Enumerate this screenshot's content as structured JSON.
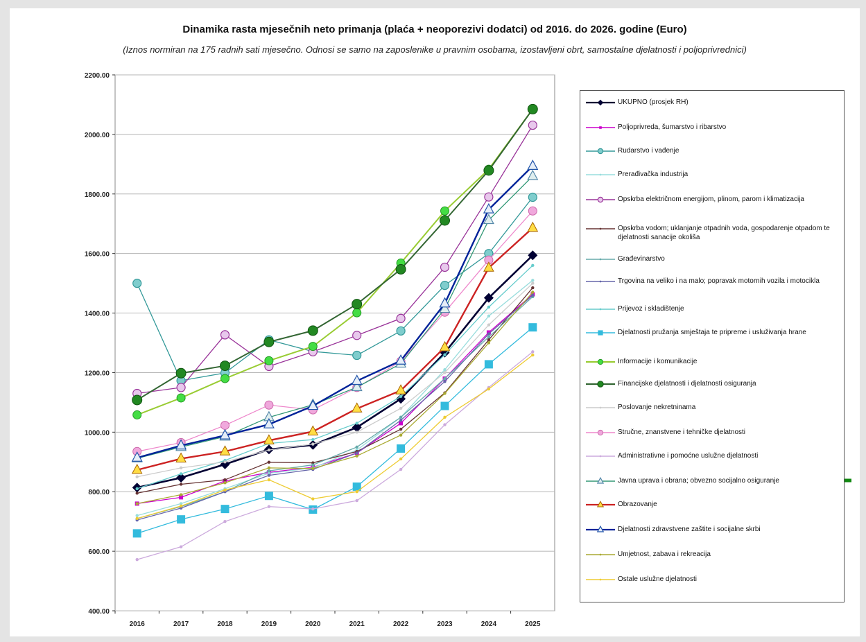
{
  "header": {
    "title": "Dinamika rasta mjesečnih neto primanja (plaća + neoporezivi dodatci) od 2016. do 2026. godine (Euro)",
    "subtitle": "(Iznos normiran na 175 radnih sati mjesečno. Odnosi se samo na zaposlenike u pravnim osobama, izostavljeni obrt, samostalne djelatnosti i poljoprivrednici)"
  },
  "chart_data": {
    "type": "line",
    "title": "Dinamika rasta mjesečnih neto primanja (plaća + neoporezivi dodatci) od 2016. do 2026. godine (Euro)",
    "subtitle": "(Iznos normiran na 175 radnih sati mjesečno. Odnosi se samo na zaposlenike u pravnim osobama, izostavljeni obrt, samostalne djelatnosti i poljoprivrednici)",
    "xlabel": "",
    "ylabel": "",
    "x": [
      "2016",
      "2017",
      "2018",
      "2019",
      "2020",
      "2021",
      "2022",
      "2023",
      "2024",
      "2025"
    ],
    "ylim": [
      400,
      2200
    ],
    "yticks": [
      "400.00",
      "600.00",
      "800.00",
      "1000.00",
      "1200.00",
      "1400.00",
      "1600.00",
      "1800.00",
      "2000.00",
      "2200.00"
    ],
    "grid": "y-major",
    "legend_position": "right",
    "series": [
      {
        "name": "UKUPNO (prosjek RH)",
        "color": "#000033",
        "marker": "diamond",
        "values": [
          814,
          847,
          892,
          942,
          957,
          1016,
          1112,
          1267,
          1451,
          1594
        ]
      },
      {
        "name": "Poljoprivreda, šumarstvo i ribarstvo",
        "color": "#cc00cc",
        "marker": "square-small",
        "values": [
          760,
          781,
          836,
          865,
          882,
          930,
          1030,
          1180,
          1335,
          1463
        ]
      },
      {
        "name": "Rudarstvo i vađenje",
        "color": "#339999",
        "marker": "circle",
        "values": [
          1500,
          1173,
          1199,
          1310,
          1271,
          1258,
          1340,
          1493,
          1600,
          1789
        ]
      },
      {
        "name": "Prerađivačka industrija",
        "color": "#99dddd",
        "marker": "dot",
        "values": [
          720,
          760,
          810,
          862,
          880,
          940,
          1050,
          1210,
          1390,
          1510
        ]
      },
      {
        "name": "Opskrba električnom energijom, plinom, parom i klimatizacija",
        "color": "#993399",
        "marker": "circle",
        "values": [
          1130,
          1150,
          1327,
          1221,
          1270,
          1325,
          1382,
          1554,
          1790,
          2031
        ]
      },
      {
        "name": "Opskrba vodom; uklanjanje otpadnih voda, gospodarenje otpadom te djelatnosti sanacije okoliša",
        "color": "#663333",
        "marker": "dot",
        "values": [
          795,
          825,
          840,
          899,
          897,
          935,
          1010,
          1132,
          1310,
          1485
        ]
      },
      {
        "name": "Građevinarstvo",
        "color": "#66aaaa",
        "marker": "dot",
        "values": [
          710,
          750,
          800,
          870,
          890,
          950,
          1050,
          1180,
          1320,
          1455
        ]
      },
      {
        "name": "Trgovina na veliko i na malo; popravak motornih vozila i motocikla",
        "color": "#6666aa",
        "marker": "dot",
        "values": [
          705,
          745,
          800,
          855,
          875,
          930,
          1040,
          1170,
          1330,
          1460
        ]
      },
      {
        "name": "Prijevoz i skladištenje",
        "color": "#66cccc",
        "marker": "dot",
        "values": [
          810,
          860,
          905,
          962,
          975,
          1030,
          1120,
          1260,
          1420,
          1560
        ]
      },
      {
        "name": "Djelatnosti pružanja smještaja te pripreme i usluživanja hrane",
        "color": "#33bbdd",
        "marker": "square",
        "values": [
          660,
          707,
          742,
          786,
          740,
          817,
          945,
          1088,
          1228,
          1352
        ]
      },
      {
        "name": "Informacije i komunikacije",
        "color": "#99cc33",
        "marker": "circle-light",
        "values": [
          1058,
          1115,
          1180,
          1240,
          1288,
          1401,
          1568,
          1743,
          1883,
          2085
        ]
      },
      {
        "name": "Financijske djelatnosti i djelatnosti osiguranja",
        "color": "#336633",
        "marker": "circle-dark",
        "values": [
          1108,
          1198,
          1223,
          1303,
          1341,
          1430,
          1547,
          1711,
          1879,
          2085
        ]
      },
      {
        "name": "Poslovanje nekretninama",
        "color": "#cccccc",
        "marker": "dot",
        "values": [
          850,
          880,
          900,
          940,
          960,
          1000,
          1080,
          1200,
          1360,
          1500
        ]
      },
      {
        "name": "Stručne, znanstvene i tehničke djelatnosti",
        "color": "#ee88cc",
        "marker": "circle-pink",
        "values": [
          935,
          965,
          1023,
          1091,
          1075,
          1150,
          1238,
          1403,
          1578,
          1743
        ]
      },
      {
        "name": "Administrativne i pomoćne uslužne djelatnosti",
        "color": "#ccaadd",
        "marker": "dot",
        "values": [
          572,
          615,
          700,
          750,
          742,
          770,
          875,
          1025,
          1150,
          1270
        ]
      },
      {
        "name": "Javna uprava i obrana; obvezno socijalno osiguranje",
        "color": "#339977",
        "marker": "triangle",
        "values": [
          912,
          950,
          985,
          1050,
          1092,
          1151,
          1230,
          1414,
          1712,
          1860
        ]
      },
      {
        "name": "Obrazovanje",
        "color": "#cc2222",
        "marker": "triangle-yellow",
        "values": [
          873,
          911,
          935,
          972,
          1002,
          1079,
          1140,
          1285,
          1552,
          1686
        ]
      },
      {
        "name": "Djelatnosti zdravstvene zaštite i socijalne skrbi",
        "color": "#002299",
        "marker": "triangle-blue",
        "values": [
          914,
          955,
          989,
          1026,
          1088,
          1172,
          1240,
          1432,
          1748,
          1894
        ]
      },
      {
        "name": "Umjetnost, zabava i rekreacija",
        "color": "#aaaa33",
        "marker": "dot",
        "values": [
          760,
          790,
          830,
          880,
          878,
          920,
          990,
          1130,
          1300,
          1470
        ]
      },
      {
        "name": "Ostale uslužne djelatnosti",
        "color": "#eecc33",
        "marker": "dot",
        "values": [
          710,
          752,
          806,
          840,
          776,
          800,
          910,
          1050,
          1145,
          1259
        ]
      }
    ],
    "annotations": [
      {
        "type": "arrow",
        "color": "#118811",
        "points_to": "Javna uprava i obrana; obvezno socijalno osiguranje"
      },
      {
        "type": "arrow",
        "color": "#118811",
        "points_to": "Obrazovanje"
      },
      {
        "type": "arrow",
        "color": "#118811",
        "points_to": "Djelatnosti zdravstvene zaštite i socijalne skrbi"
      }
    ]
  }
}
